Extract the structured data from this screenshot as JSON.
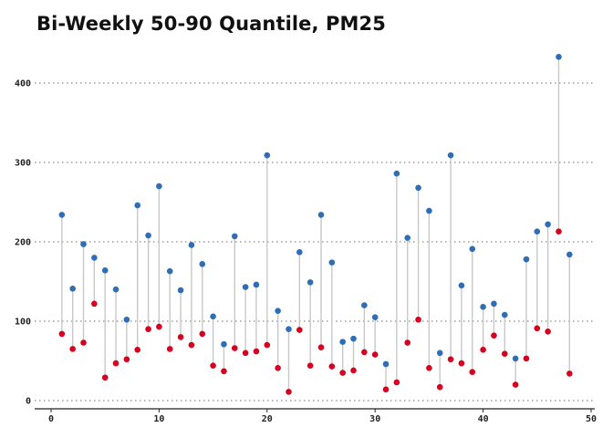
{
  "title": "Bi-Weekly 50-90 Quantile, PM25",
  "colors": {
    "high": "#2f6db5",
    "low": "#d7001f",
    "stem": "#c8c8c8",
    "grid": "#8a8a8a",
    "axis": "#222222"
  },
  "chart_data": {
    "type": "scatter",
    "title": "Bi-Weekly 50-90 Quantile, PM25",
    "xlabel": "",
    "ylabel": "",
    "xlim": [
      0,
      50
    ],
    "ylim": [
      0,
      440
    ],
    "xticks": [
      0,
      10,
      20,
      30,
      40,
      50
    ],
    "yticks": [
      0,
      100,
      200,
      300,
      400
    ],
    "grid": "horizontal dotted",
    "x": [
      1,
      2,
      3,
      4,
      5,
      6,
      7,
      8,
      9,
      10,
      11,
      12,
      13,
      14,
      15,
      16,
      17,
      18,
      19,
      20,
      21,
      22,
      23,
      24,
      25,
      26,
      27,
      28,
      29,
      30,
      31,
      32,
      33,
      34,
      35,
      36,
      37,
      38,
      39,
      40,
      41,
      42,
      43,
      44,
      45,
      46,
      47,
      48
    ],
    "series": [
      {
        "values": [
          234,
          141,
          197,
          180,
          164,
          140,
          102,
          246,
          208,
          270,
          163,
          139,
          196,
          172,
          106,
          71,
          207,
          143,
          146,
          309,
          113,
          90,
          187,
          149,
          234,
          174,
          74,
          78,
          120,
          105,
          46,
          286,
          205,
          268,
          239,
          60,
          309,
          145,
          191,
          118,
          122,
          108,
          53,
          178,
          213,
          222,
          433,
          184
        ]
      },
      {
        "values": [
          84,
          65,
          73,
          122,
          29,
          47,
          52,
          64,
          90,
          93,
          65,
          80,
          70,
          84,
          44,
          37,
          66,
          60,
          62,
          70,
          41,
          11,
          89,
          44,
          67,
          43,
          35,
          38,
          61,
          58,
          14,
          23,
          73,
          102,
          41,
          17,
          52,
          47,
          36,
          64,
          82,
          59,
          20,
          53,
          91,
          87,
          213,
          34
        ]
      }
    ]
  }
}
